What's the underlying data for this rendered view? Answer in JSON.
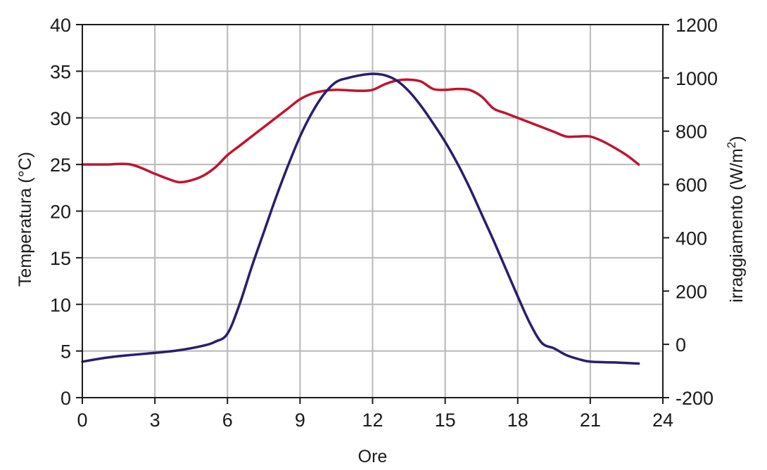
{
  "chart_data": {
    "type": "line",
    "title": "",
    "xlabel": "Ore",
    "ylabel_left": "Temperatura (°C)",
    "ylabel_right_main": "irraggiamento (W/m",
    "ylabel_right_sup": "2",
    "ylabel_right_close": ")",
    "xlim": [
      0,
      24
    ],
    "ylim_left": [
      0,
      40
    ],
    "ylim_right": [
      -200,
      1200
    ],
    "xticks": [
      0,
      3,
      6,
      9,
      12,
      15,
      18,
      21,
      24
    ],
    "yticks_left": [
      0,
      5,
      10,
      15,
      20,
      25,
      30,
      35,
      40
    ],
    "yticks_right": [
      -200,
      0,
      200,
      400,
      600,
      800,
      1000,
      1200
    ],
    "grid": true,
    "series": [
      {
        "axis": "left",
        "color": "#c0142e",
        "x": [
          0,
          1,
          2,
          3,
          3.5,
          4,
          4.5,
          5,
          5.5,
          6,
          6.5,
          7,
          7.5,
          8,
          8.5,
          9,
          9.5,
          10,
          10.5,
          11,
          11.5,
          12,
          12.5,
          13,
          13.5,
          14,
          14.5,
          15,
          15.5,
          16,
          16.5,
          17,
          17.5,
          18,
          18.5,
          19,
          19.5,
          20,
          20.5,
          21,
          21.5,
          22,
          22.5,
          23
        ],
        "values": [
          25,
          25,
          25,
          24,
          23.5,
          23.1,
          23.3,
          23.8,
          24.7,
          26,
          27,
          28,
          29,
          30,
          31,
          32,
          32.6,
          32.9,
          33,
          32.95,
          32.9,
          33,
          33.6,
          34,
          34.1,
          33.9,
          33.1,
          33,
          33.1,
          33,
          32.3,
          31,
          30.5,
          30,
          29.5,
          29,
          28.5,
          28,
          28,
          28,
          27.5,
          26.8,
          26,
          25
        ]
      },
      {
        "axis": "right",
        "color": "#2a1d6e",
        "x": [
          0,
          1,
          2,
          3,
          4,
          5,
          5.5,
          6,
          6.5,
          7,
          7.5,
          8,
          8.5,
          9,
          9.5,
          10,
          10.5,
          11,
          11.5,
          12,
          12.5,
          13,
          13.5,
          14,
          14.5,
          15,
          15.5,
          16,
          16.5,
          17,
          17.5,
          18,
          18.5,
          19,
          19.5,
          20,
          20.5,
          21,
          22,
          23
        ],
        "values": [
          -65,
          -50,
          -40,
          -32,
          -22,
          -5,
          10,
          40,
          150,
          290,
          420,
          550,
          670,
          780,
          870,
          940,
          985,
          1000,
          1010,
          1015,
          1010,
          990,
          950,
          895,
          830,
          760,
          680,
          590,
          490,
          390,
          285,
          180,
          80,
          5,
          -15,
          -40,
          -55,
          -65,
          -68,
          -72
        ]
      }
    ]
  }
}
